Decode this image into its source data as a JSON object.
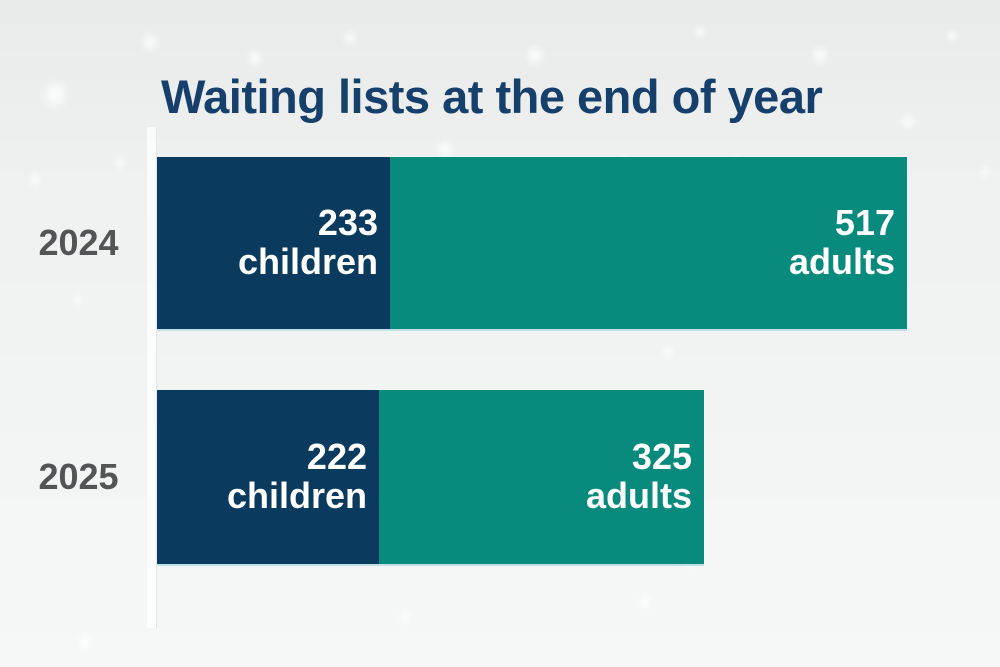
{
  "title": "Waiting lists at the end of year",
  "colors": {
    "title_text": "#16406b",
    "year_label_text": "#535456",
    "bar_value_text": "#ffffff",
    "children_segment": "#0a3b5e",
    "adults_segment": "#088a7c"
  },
  "chart_data": {
    "type": "bar",
    "orientation": "horizontal",
    "stacked": true,
    "title": "Waiting lists at the end of year",
    "categories": [
      "2024",
      "2025"
    ],
    "series": [
      {
        "name": "children",
        "color": "#0a3b5e",
        "values": [
          233,
          222
        ]
      },
      {
        "name": "adults",
        "color": "#088a7c",
        "values": [
          517,
          325
        ]
      }
    ],
    "totals": [
      750,
      547
    ],
    "pixels_per_unit": 1,
    "value_label_style": "value above series name, white, inside segment right-aligned",
    "legend_position": "none",
    "axes_visible": false,
    "grid": false
  }
}
